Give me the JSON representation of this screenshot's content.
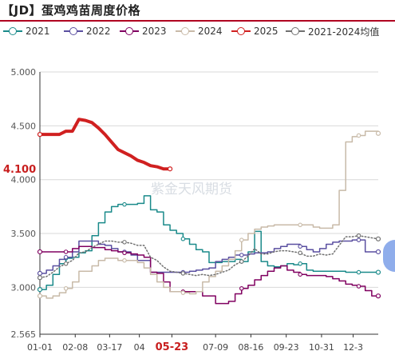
{
  "title": "【JD】蛋鸡鸡苗周度价格",
  "watermark": "紫金天风期货",
  "current_value_label": "4.100",
  "highlight_date_label": "05-23",
  "legend": [
    {
      "label": "2021",
      "color": "#1a8a8a"
    },
    {
      "label": "2022",
      "color": "#5a4fa0"
    },
    {
      "label": "2023",
      "color": "#800060"
    },
    {
      "label": "2024",
      "color": "#c8baa8"
    },
    {
      "label": "2025",
      "color": "#d02020"
    },
    {
      "label": "2021-2024均值",
      "color": "#707070"
    }
  ],
  "chart_data": {
    "type": "line",
    "title": "【JD】蛋鸡鸡苗周度价格",
    "ylim": [
      2.565,
      5.0
    ],
    "y_ticks": [
      "5.000",
      "4.500",
      "4.000",
      "3.500",
      "3.000",
      "2.565"
    ],
    "y_tick_values": [
      5.0,
      4.5,
      4.0,
      3.5,
      3.0,
      2.565
    ],
    "x_tick_labels": [
      "01-01",
      "02-08",
      "03-17",
      "04",
      "05-23",
      "07-09",
      "08-16",
      "09-23",
      "10-31",
      "12-3"
    ],
    "x_tick_days": [
      1,
      39,
      76,
      108,
      143,
      190,
      228,
      266,
      304,
      338
    ],
    "xlim_days": [
      1,
      365
    ],
    "grid": "horizontal",
    "legend_position": "top",
    "series": [
      {
        "name": "2021",
        "color": "#1a8a8a",
        "style": "step",
        "width": 1.5,
        "points": [
          [
            1,
            2.98
          ],
          [
            8,
            3.02
          ],
          [
            15,
            3.12
          ],
          [
            22,
            3.22
          ],
          [
            29,
            3.27
          ],
          [
            36,
            3.28
          ],
          [
            43,
            3.32
          ],
          [
            50,
            3.34
          ],
          [
            57,
            3.48
          ],
          [
            64,
            3.6
          ],
          [
            71,
            3.7
          ],
          [
            78,
            3.75
          ],
          [
            85,
            3.77
          ],
          [
            92,
            3.77
          ],
          [
            99,
            3.77
          ],
          [
            106,
            3.78
          ],
          [
            113,
            3.85
          ],
          [
            120,
            3.72
          ],
          [
            127,
            3.7
          ],
          [
            134,
            3.58
          ],
          [
            141,
            3.53
          ],
          [
            148,
            3.5
          ],
          [
            155,
            3.45
          ],
          [
            162,
            3.4
          ],
          [
            169,
            3.35
          ],
          [
            176,
            3.33
          ],
          [
            183,
            3.23
          ],
          [
            190,
            3.23
          ],
          [
            197,
            3.24
          ],
          [
            204,
            3.24
          ],
          [
            211,
            3.26
          ],
          [
            218,
            3.24
          ],
          [
            225,
            3.33
          ],
          [
            232,
            3.52
          ],
          [
            239,
            3.24
          ],
          [
            246,
            3.2
          ],
          [
            253,
            3.19
          ],
          [
            260,
            3.2
          ],
          [
            267,
            3.22
          ],
          [
            274,
            3.21
          ],
          [
            281,
            3.22
          ],
          [
            288,
            3.16
          ],
          [
            295,
            3.15
          ],
          [
            302,
            3.15
          ],
          [
            309,
            3.15
          ],
          [
            316,
            3.15
          ],
          [
            323,
            3.15
          ],
          [
            330,
            3.14
          ],
          [
            337,
            3.14
          ],
          [
            344,
            3.14
          ],
          [
            351,
            3.14
          ],
          [
            358,
            3.14
          ],
          [
            365,
            3.14
          ]
        ]
      },
      {
        "name": "2022",
        "color": "#5a4fa0",
        "style": "step",
        "width": 1.5,
        "points": [
          [
            1,
            3.13
          ],
          [
            8,
            3.16
          ],
          [
            15,
            3.2
          ],
          [
            22,
            3.26
          ],
          [
            29,
            3.28
          ],
          [
            36,
            3.33
          ],
          [
            43,
            3.43
          ],
          [
            50,
            3.43
          ],
          [
            57,
            3.43
          ],
          [
            64,
            3.4
          ],
          [
            71,
            3.39
          ],
          [
            78,
            3.36
          ],
          [
            85,
            3.33
          ],
          [
            92,
            3.33
          ],
          [
            99,
            3.3
          ],
          [
            106,
            3.25
          ],
          [
            113,
            3.25
          ],
          [
            120,
            3.14
          ],
          [
            127,
            3.14
          ],
          [
            134,
            3.14
          ],
          [
            141,
            3.14
          ],
          [
            148,
            3.14
          ],
          [
            155,
            3.14
          ],
          [
            162,
            3.15
          ],
          [
            169,
            3.16
          ],
          [
            176,
            3.17
          ],
          [
            183,
            3.18
          ],
          [
            190,
            3.24
          ],
          [
            197,
            3.26
          ],
          [
            204,
            3.28
          ],
          [
            211,
            3.3
          ],
          [
            218,
            3.3
          ],
          [
            225,
            3.31
          ],
          [
            232,
            3.32
          ],
          [
            239,
            3.32
          ],
          [
            246,
            3.33
          ],
          [
            253,
            3.36
          ],
          [
            260,
            3.38
          ],
          [
            267,
            3.4
          ],
          [
            274,
            3.4
          ],
          [
            281,
            3.38
          ],
          [
            288,
            3.35
          ],
          [
            295,
            3.33
          ],
          [
            302,
            3.36
          ],
          [
            309,
            3.4
          ],
          [
            316,
            3.42
          ],
          [
            323,
            3.43
          ],
          [
            330,
            3.43
          ],
          [
            337,
            3.44
          ],
          [
            344,
            3.44
          ],
          [
            351,
            3.33
          ],
          [
            358,
            3.33
          ],
          [
            365,
            3.33
          ]
        ]
      },
      {
        "name": "2023",
        "color": "#800060",
        "style": "step",
        "width": 1.5,
        "points": [
          [
            1,
            3.33
          ],
          [
            8,
            3.33
          ],
          [
            15,
            3.33
          ],
          [
            22,
            3.33
          ],
          [
            29,
            3.33
          ],
          [
            36,
            3.36
          ],
          [
            43,
            3.38
          ],
          [
            50,
            3.38
          ],
          [
            57,
            3.37
          ],
          [
            64,
            3.37
          ],
          [
            71,
            3.35
          ],
          [
            78,
            3.34
          ],
          [
            85,
            3.33
          ],
          [
            92,
            3.32
          ],
          [
            99,
            3.31
          ],
          [
            106,
            3.3
          ],
          [
            113,
            3.28
          ],
          [
            120,
            3.14
          ],
          [
            127,
            3.13
          ],
          [
            134,
            3.05
          ],
          [
            141,
            2.96
          ],
          [
            148,
            2.96
          ],
          [
            155,
            2.96
          ],
          [
            162,
            2.96
          ],
          [
            169,
            2.96
          ],
          [
            176,
            2.92
          ],
          [
            183,
            2.92
          ],
          [
            190,
            2.85
          ],
          [
            197,
            2.85
          ],
          [
            204,
            2.87
          ],
          [
            211,
            2.94
          ],
          [
            218,
            2.99
          ],
          [
            225,
            3.02
          ],
          [
            232,
            3.07
          ],
          [
            239,
            3.11
          ],
          [
            246,
            3.15
          ],
          [
            253,
            3.18
          ],
          [
            260,
            3.2
          ],
          [
            267,
            3.16
          ],
          [
            274,
            3.14
          ],
          [
            281,
            3.12
          ],
          [
            288,
            3.11
          ],
          [
            295,
            3.11
          ],
          [
            302,
            3.11
          ],
          [
            309,
            3.1
          ],
          [
            316,
            3.08
          ],
          [
            323,
            3.06
          ],
          [
            330,
            3.03
          ],
          [
            337,
            3.02
          ],
          [
            344,
            3.01
          ],
          [
            351,
            2.97
          ],
          [
            358,
            2.92
          ],
          [
            365,
            2.92
          ]
        ]
      },
      {
        "name": "2024",
        "color": "#c8baa8",
        "style": "step",
        "width": 1.5,
        "points": [
          [
            1,
            2.92
          ],
          [
            8,
            2.9
          ],
          [
            15,
            2.92
          ],
          [
            22,
            2.95
          ],
          [
            29,
            2.99
          ],
          [
            36,
            3.05
          ],
          [
            43,
            3.15
          ],
          [
            50,
            3.15
          ],
          [
            57,
            3.2
          ],
          [
            64,
            3.25
          ],
          [
            71,
            3.27
          ],
          [
            78,
            3.27
          ],
          [
            85,
            3.25
          ],
          [
            92,
            3.25
          ],
          [
            99,
            3.25
          ],
          [
            106,
            3.23
          ],
          [
            113,
            3.18
          ],
          [
            120,
            3.12
          ],
          [
            127,
            3.05
          ],
          [
            134,
            3.0
          ],
          [
            141,
            2.96
          ],
          [
            148,
            2.96
          ],
          [
            155,
            2.95
          ],
          [
            162,
            2.94
          ],
          [
            169,
            2.96
          ],
          [
            176,
            3.05
          ],
          [
            183,
            3.1
          ],
          [
            190,
            3.15
          ],
          [
            197,
            3.2
          ],
          [
            204,
            3.26
          ],
          [
            211,
            3.34
          ],
          [
            218,
            3.44
          ],
          [
            225,
            3.5
          ],
          [
            232,
            3.54
          ],
          [
            239,
            3.56
          ],
          [
            246,
            3.57
          ],
          [
            253,
            3.58
          ],
          [
            260,
            3.58
          ],
          [
            267,
            3.58
          ],
          [
            274,
            3.58
          ],
          [
            281,
            3.58
          ],
          [
            288,
            3.58
          ],
          [
            295,
            3.56
          ],
          [
            302,
            3.55
          ],
          [
            309,
            3.55
          ],
          [
            316,
            3.58
          ],
          [
            323,
            3.9
          ],
          [
            330,
            4.35
          ],
          [
            337,
            4.4
          ],
          [
            344,
            4.41
          ],
          [
            351,
            4.45
          ],
          [
            358,
            4.45
          ],
          [
            365,
            4.43
          ]
        ]
      },
      {
        "name": "2025",
        "color": "#d02020",
        "style": "line",
        "width": 4,
        "points": [
          [
            1,
            4.42
          ],
          [
            8,
            4.42
          ],
          [
            15,
            4.42
          ],
          [
            22,
            4.42
          ],
          [
            29,
            4.45
          ],
          [
            36,
            4.45
          ],
          [
            43,
            4.56
          ],
          [
            50,
            4.55
          ],
          [
            57,
            4.53
          ],
          [
            64,
            4.48
          ],
          [
            71,
            4.42
          ],
          [
            78,
            4.35
          ],
          [
            85,
            4.28
          ],
          [
            92,
            4.25
          ],
          [
            99,
            4.22
          ],
          [
            106,
            4.18
          ],
          [
            113,
            4.16
          ],
          [
            120,
            4.13
          ],
          [
            127,
            4.12
          ],
          [
            134,
            4.1
          ],
          [
            141,
            4.1
          ]
        ]
      },
      {
        "name": "2021-2024均值",
        "color": "#707070",
        "style": "dotted",
        "width": 1.5,
        "points": [
          [
            1,
            3.09
          ],
          [
            8,
            3.1
          ],
          [
            15,
            3.14
          ],
          [
            22,
            3.19
          ],
          [
            29,
            3.22
          ],
          [
            36,
            3.25
          ],
          [
            43,
            3.32
          ],
          [
            50,
            3.33
          ],
          [
            57,
            3.37
          ],
          [
            64,
            3.4
          ],
          [
            71,
            3.43
          ],
          [
            78,
            3.43
          ],
          [
            85,
            3.42
          ],
          [
            92,
            3.42
          ],
          [
            99,
            3.41
          ],
          [
            106,
            3.39
          ],
          [
            113,
            3.39
          ],
          [
            120,
            3.28
          ],
          [
            127,
            3.25
          ],
          [
            134,
            3.19
          ],
          [
            141,
            3.15
          ],
          [
            148,
            3.14
          ],
          [
            155,
            3.13
          ],
          [
            162,
            3.12
          ],
          [
            169,
            3.11
          ],
          [
            176,
            3.12
          ],
          [
            183,
            3.11
          ],
          [
            190,
            3.12
          ],
          [
            197,
            3.14
          ],
          [
            204,
            3.16
          ],
          [
            211,
            3.21
          ],
          [
            218,
            3.24
          ],
          [
            225,
            3.29
          ],
          [
            232,
            3.36
          ],
          [
            239,
            3.31
          ],
          [
            246,
            3.31
          ],
          [
            253,
            3.33
          ],
          [
            260,
            3.34
          ],
          [
            267,
            3.34
          ],
          [
            274,
            3.33
          ],
          [
            281,
            3.32
          ],
          [
            288,
            3.29
          ],
          [
            295,
            3.29
          ],
          [
            302,
            3.31
          ],
          [
            309,
            3.3
          ],
          [
            316,
            3.31
          ],
          [
            323,
            3.39
          ],
          [
            330,
            3.47
          ],
          [
            337,
            3.47
          ],
          [
            344,
            3.48
          ],
          [
            351,
            3.47
          ],
          [
            358,
            3.46
          ],
          [
            365,
            3.45
          ]
        ]
      }
    ]
  }
}
